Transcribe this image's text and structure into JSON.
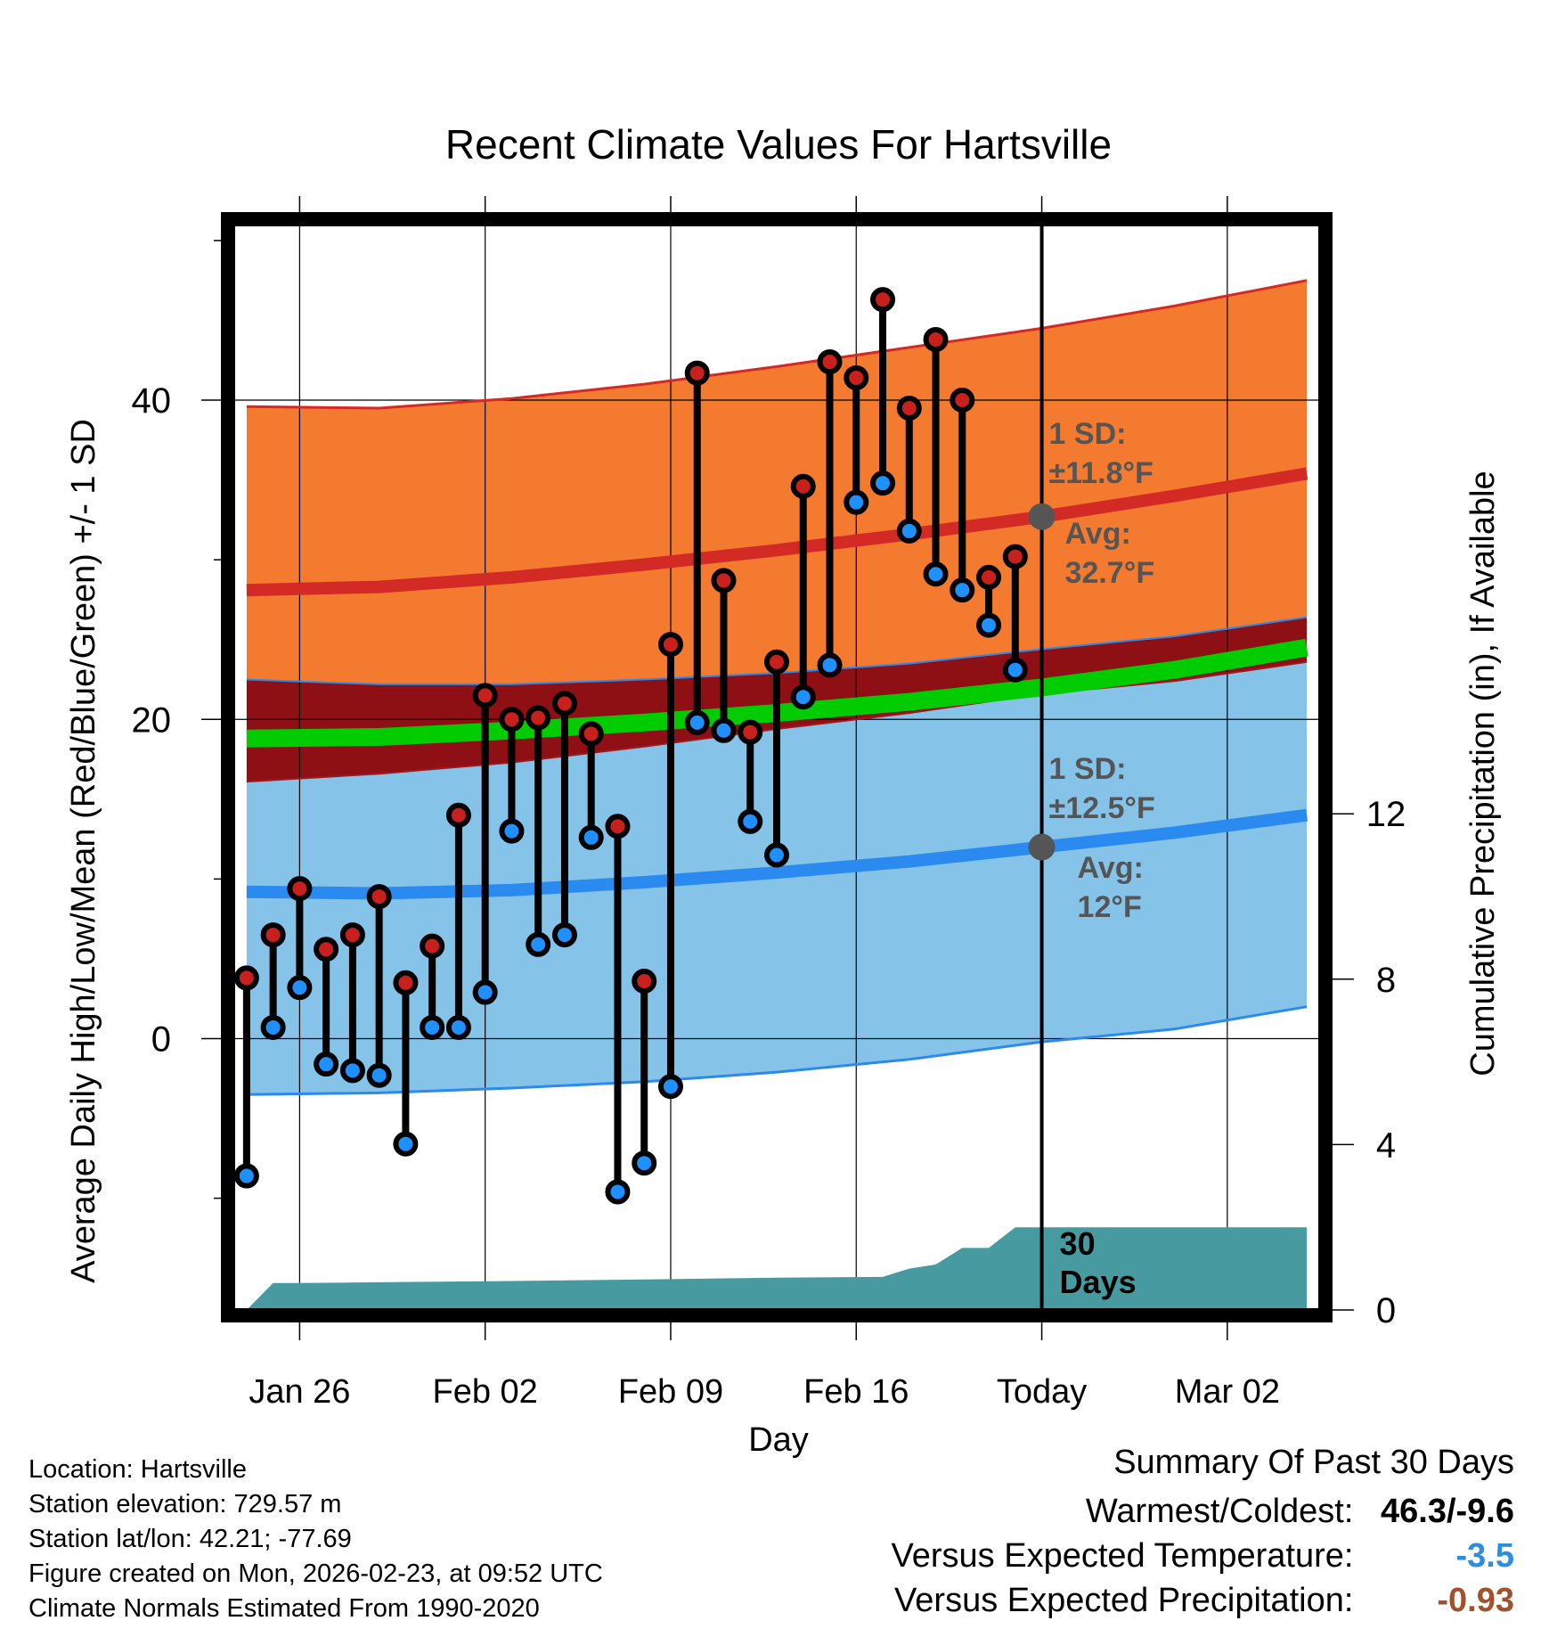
{
  "chart_data": {
    "type": "line",
    "title": "Recent Climate Values For Hartsville",
    "xlabel": "Day",
    "ylabel": "Average Daily High/Low/Mean (Red/Blue/Green) +/- 1 SD",
    "y2label": "Cumulative Precipitation (in), If Available",
    "xlim": [
      -0.5,
      40.5
    ],
    "ylim": [
      -17,
      51
    ],
    "y2lim": [
      0,
      26.25
    ],
    "x_ticks": [
      {
        "x": 2,
        "label": "Jan 26"
      },
      {
        "x": 9,
        "label": "Feb 02"
      },
      {
        "x": 16,
        "label": "Feb 09"
      },
      {
        "x": 23,
        "label": "Feb 16"
      },
      {
        "x": 30,
        "label": "Today"
      },
      {
        "x": 37,
        "label": "Mar 02"
      }
    ],
    "y_ticks": [
      0,
      20,
      40
    ],
    "y_minor_ticks": [
      -10,
      10,
      30,
      50
    ],
    "y2_ticks": [
      0,
      4,
      8,
      12
    ],
    "today_x": 30,
    "normals": {
      "x": [
        0,
        5,
        10,
        15,
        20,
        25,
        30,
        35,
        40
      ],
      "high_avg": [
        28.1,
        28.3,
        28.9,
        29.7,
        30.6,
        31.6,
        32.7,
        34.0,
        35.4
      ],
      "high_upper": [
        39.6,
        39.5,
        40.1,
        41.0,
        42.1,
        43.3,
        44.5,
        45.9,
        47.5
      ],
      "high_lower": [
        22.5,
        22.2,
        22.2,
        22.5,
        22.9,
        23.5,
        24.4,
        25.2,
        26.4
      ],
      "mean_avg": [
        18.8,
        18.9,
        19.3,
        19.8,
        20.4,
        21.1,
        22.0,
        23.1,
        24.5
      ],
      "low_avg": [
        9.2,
        9.1,
        9.3,
        9.8,
        10.4,
        11.1,
        12.0,
        12.9,
        14.0
      ],
      "low_upper": [
        16.1,
        16.6,
        17.3,
        18.3,
        19.4,
        20.4,
        21.6,
        22.4,
        23.6
      ],
      "low_lower": [
        -3.5,
        -3.4,
        -3.1,
        -2.7,
        -2.1,
        -1.3,
        -0.2,
        0.6,
        2.0
      ]
    },
    "series": [
      {
        "name": "High",
        "color": "#c8201c",
        "values": [
          3.8,
          6.5,
          9.4,
          5.6,
          6.5,
          8.9,
          3.5,
          5.8,
          14.0,
          21.5,
          20.0,
          20.1,
          21.0,
          19.1,
          13.3,
          3.6,
          24.7,
          41.7,
          28.7,
          19.2,
          23.6,
          34.6,
          42.4,
          41.4,
          46.3,
          39.5,
          43.8,
          40.0,
          28.9,
          30.2
        ]
      },
      {
        "name": "Low",
        "color": "#1e90ff",
        "values": [
          -8.6,
          0.7,
          3.2,
          -1.6,
          -2.0,
          -2.3,
          -6.6,
          0.7,
          0.7,
          2.9,
          13.0,
          5.9,
          6.5,
          12.6,
          -9.6,
          -7.8,
          -3.0,
          19.8,
          19.3,
          13.6,
          11.5,
          21.4,
          23.4,
          33.6,
          34.8,
          31.8,
          29.1,
          28.1,
          25.9,
          23.1
        ]
      }
    ],
    "precip": {
      "x": [
        0,
        1,
        2,
        5,
        10,
        15,
        20,
        24,
        25,
        26,
        27,
        28,
        29,
        30,
        40
      ],
      "values": [
        0.0,
        0.65,
        0.65,
        0.67,
        0.7,
        0.74,
        0.78,
        0.8,
        1.0,
        1.1,
        1.5,
        1.5,
        2.0,
        2.0,
        2.0
      ]
    },
    "annotations": {
      "high_sd": "1 SD:",
      "high_sd_value": "±11.8°F",
      "high_avg_label": "Avg:",
      "high_avg_value": "32.7°F",
      "low_sd": "1 SD:",
      "low_sd_value": "±12.5°F",
      "low_avg_label": "Avg:",
      "low_avg_value": "12°F",
      "days_count": "30",
      "days_label": "Days"
    }
  },
  "info": {
    "location": "Location: Hartsville",
    "elevation": "Station elevation: 729.57 m",
    "latlon": "Station lat/lon: 42.21; -77.69",
    "created": "Figure created on Mon, 2026-02-23, at 09:52 UTC",
    "normals": "Climate Normals Estimated From 1990-2020"
  },
  "summary": {
    "title": "Summary Of Past 30 Days",
    "warm_cold_label": "Warmest/Coldest:",
    "warm_cold_value": "46.3/-9.6",
    "temp_label": "Versus Expected Temperature:",
    "temp_value": "-3.5",
    "temp_color": "#2b8fe0",
    "precip_label": "Versus Expected Precipitation:",
    "precip_value": "-0.93",
    "precip_color": "#a0522d"
  },
  "colors": {
    "high_band": "#f47a30",
    "high_line": "#d42a26",
    "gap_band": "#8e0f14",
    "mean_line": "#00cc00",
    "low_band": "#86c3e9",
    "low_line": "#2a8af0",
    "precip": "#469aa0",
    "frame": "#000000"
  }
}
